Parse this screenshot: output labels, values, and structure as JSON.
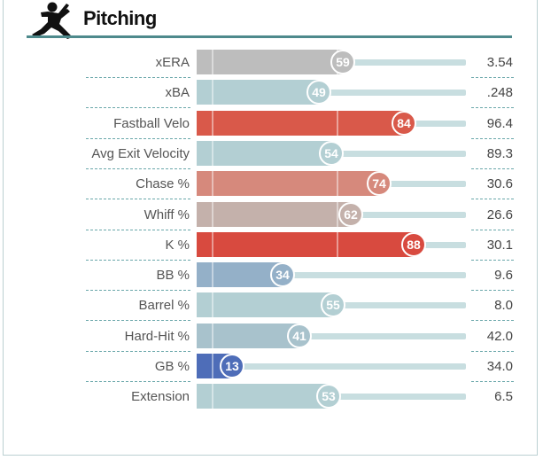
{
  "header": {
    "title": "Pitching",
    "icon": "pitcher-icon"
  },
  "colors": {
    "rule": "#4e8a8c",
    "track": "#c8dee0"
  },
  "metrics": [
    {
      "label": "xERA",
      "percentile": 59,
      "value": "3.54",
      "color": "#bdbdbd"
    },
    {
      "label": "xBA",
      "percentile": 49,
      "value": ".248",
      "color": "#b3cfd3"
    },
    {
      "label": "Fastball Velo",
      "percentile": 84,
      "value": "96.4",
      "color": "#d9594a"
    },
    {
      "label": "Avg Exit Velocity",
      "percentile": 54,
      "value": "89.3",
      "color": "#b3cfd3"
    },
    {
      "label": "Chase %",
      "percentile": 74,
      "value": "30.6",
      "color": "#d6897c"
    },
    {
      "label": "Whiff %",
      "percentile": 62,
      "value": "26.6",
      "color": "#c4b1ab"
    },
    {
      "label": "K %",
      "percentile": 88,
      "value": "30.1",
      "color": "#d84a3f"
    },
    {
      "label": "BB %",
      "percentile": 34,
      "value": "9.6",
      "color": "#94b0c8"
    },
    {
      "label": "Barrel %",
      "percentile": 55,
      "value": "8.0",
      "color": "#b3cfd3"
    },
    {
      "label": "Hard-Hit %",
      "percentile": 41,
      "value": "42.0",
      "color": "#a8c2cc"
    },
    {
      "label": "GB %",
      "percentile": 13,
      "value": "34.0",
      "color": "#4e6db8"
    },
    {
      "label": "Extension",
      "percentile": 53,
      "value": "6.5",
      "color": "#b3cfd3"
    }
  ]
}
